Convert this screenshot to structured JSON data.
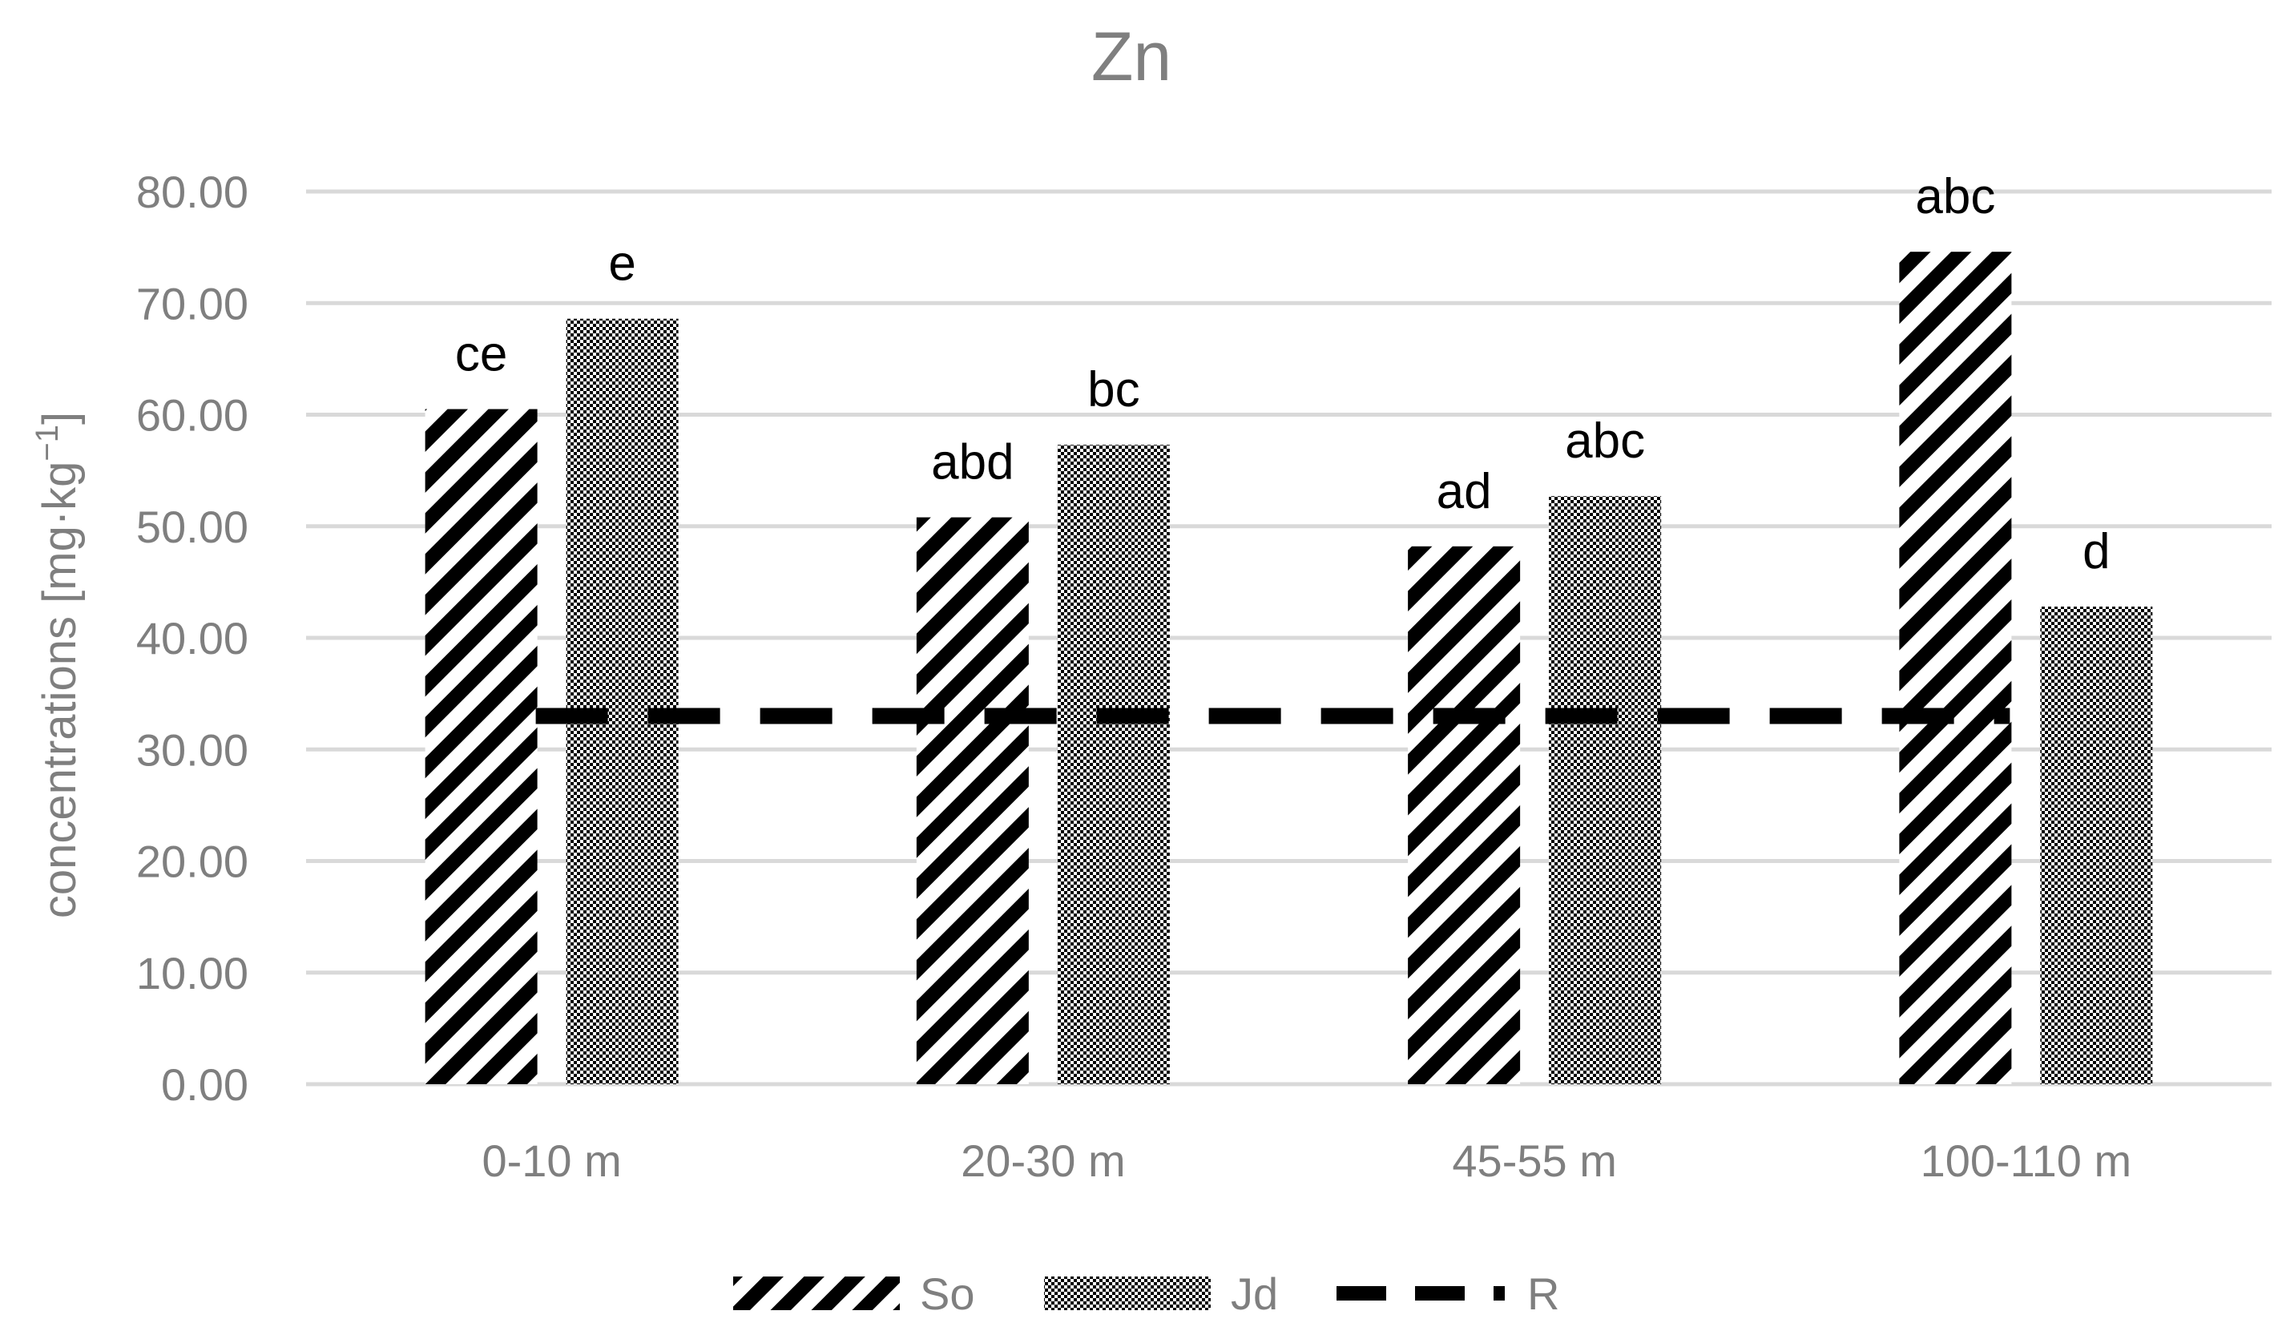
{
  "chart_data": {
    "type": "bar",
    "title": "Zn",
    "ylabel_main": "concentrations [mg·kg",
    "ylabel_sup": "−1",
    "ylabel_end": "]",
    "xlabel": "",
    "categories": [
      "0-10 m",
      "20-30 m",
      "45-55 m",
      "100-110 m"
    ],
    "ylim": [
      0,
      80
    ],
    "ytick_values": [
      0,
      10,
      20,
      30,
      40,
      50,
      60,
      70,
      80
    ],
    "ytick_labels": [
      "0.00",
      "10.00",
      "20.00",
      "30.00",
      "40.00",
      "50.00",
      "60.00",
      "70.00",
      "80.00"
    ],
    "grid": true,
    "legend_position": "bottom",
    "series": [
      {
        "name": "So",
        "pattern": "diagonal-stripes",
        "color": "#000000",
        "values": [
          60.5,
          50.8,
          48.2,
          74.6
        ],
        "labels": [
          "ce",
          "abd",
          "ad",
          "abc"
        ]
      },
      {
        "name": "Jd",
        "pattern": "dots",
        "color": "#000000",
        "values": [
          68.6,
          57.3,
          52.7,
          42.8
        ],
        "labels": [
          "e",
          "bc",
          "abc",
          "d"
        ]
      }
    ],
    "reference_line": {
      "name": "R",
      "value": 33.0,
      "style": "dashed",
      "color": "#000000"
    }
  }
}
